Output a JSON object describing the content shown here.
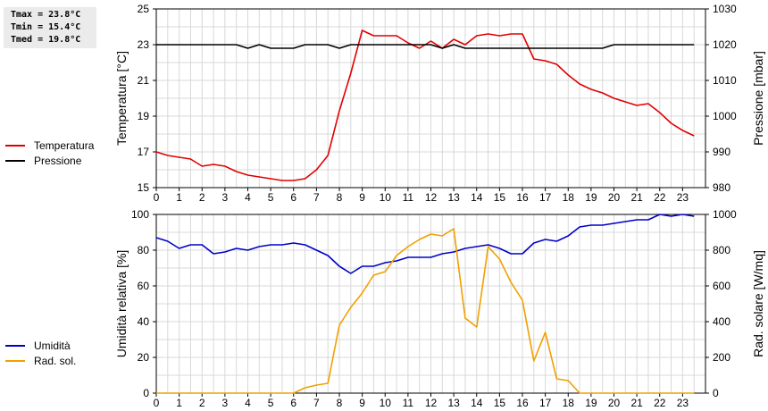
{
  "stats": {
    "tmax": "Tmax = 23.8°C",
    "tmin": "Tmin = 15.4°C",
    "tmed": "Tmed = 19.8°C"
  },
  "legend_top": [
    {
      "label": "Temperatura",
      "color": "#e00000"
    },
    {
      "label": "Pressione",
      "color": "#000000"
    }
  ],
  "legend_bottom": [
    {
      "label": "Umidità",
      "color": "#0000c8"
    },
    {
      "label": "Rad. sol.",
      "color": "#f0a000"
    }
  ],
  "chart_data": [
    {
      "type": "line",
      "x_ticks": [
        0,
        1,
        2,
        3,
        4,
        5,
        6,
        7,
        8,
        9,
        10,
        11,
        12,
        13,
        14,
        15,
        16,
        17,
        18,
        19,
        20,
        21,
        22,
        23
      ],
      "xlim": [
        0,
        24
      ],
      "grid": true,
      "left_axis": {
        "label": "Temperatura [°C]",
        "ylim": [
          15,
          25
        ],
        "ticks": [
          15,
          17,
          19,
          21,
          23,
          25
        ]
      },
      "right_axis": {
        "label": "Pressione [mbar]",
        "ylim": [
          980,
          1030
        ],
        "ticks": [
          980,
          990,
          1000,
          1010,
          1020,
          1030
        ]
      },
      "series": [
        {
          "name": "Temperatura",
          "axis": "left",
          "color": "#e00000",
          "x": [
            0,
            0.5,
            1,
            1.5,
            2,
            2.5,
            3,
            3.5,
            4,
            4.5,
            5,
            5.5,
            6,
            6.5,
            7,
            7.5,
            8,
            8.5,
            9,
            9.5,
            10,
            10.5,
            11,
            11.5,
            12,
            12.5,
            13,
            13.5,
            14,
            14.5,
            15,
            15.5,
            16,
            16.5,
            17,
            17.5,
            18,
            18.5,
            19,
            19.5,
            20,
            20.5,
            21,
            21.5,
            22,
            22.5,
            23,
            23.5
          ],
          "y": [
            17.0,
            16.8,
            16.7,
            16.6,
            16.2,
            16.3,
            16.2,
            15.9,
            15.7,
            15.6,
            15.5,
            15.4,
            15.4,
            15.5,
            16.0,
            16.8,
            19.3,
            21.4,
            23.8,
            23.5,
            23.5,
            23.5,
            23.1,
            22.8,
            23.2,
            22.8,
            23.3,
            23.0,
            23.5,
            23.6,
            23.5,
            23.6,
            23.6,
            22.2,
            22.1,
            21.9,
            21.3,
            20.8,
            20.5,
            20.3,
            20.0,
            19.8,
            19.6,
            19.7,
            19.2,
            18.6,
            18.2,
            17.9
          ]
        },
        {
          "name": "Pressione",
          "axis": "right",
          "color": "#000000",
          "x": [
            0,
            0.5,
            1,
            1.5,
            2,
            2.5,
            3,
            3.5,
            4,
            4.5,
            5,
            5.5,
            6,
            6.5,
            7,
            7.5,
            8,
            8.5,
            9,
            9.5,
            10,
            10.5,
            11,
            11.5,
            12,
            12.5,
            13,
            13.5,
            14,
            14.5,
            15,
            15.5,
            16,
            16.5,
            17,
            17.5,
            18,
            18.5,
            19,
            19.5,
            20,
            20.5,
            21,
            21.5,
            22,
            22.5,
            23,
            23.5
          ],
          "y": [
            1020,
            1020,
            1020,
            1020,
            1020,
            1020,
            1020,
            1020,
            1019,
            1020,
            1019,
            1019,
            1019,
            1020,
            1020,
            1020,
            1019,
            1020,
            1020,
            1020,
            1020,
            1020,
            1020,
            1020,
            1020,
            1019,
            1020,
            1019,
            1019,
            1019,
            1019,
            1019,
            1019,
            1019,
            1019,
            1019,
            1019,
            1019,
            1019,
            1019,
            1020,
            1020,
            1020,
            1020,
            1020,
            1020,
            1020,
            1020
          ]
        }
      ]
    },
    {
      "type": "line",
      "x_ticks": [
        0,
        1,
        2,
        3,
        4,
        5,
        6,
        7,
        8,
        9,
        10,
        11,
        12,
        13,
        14,
        15,
        16,
        17,
        18,
        19,
        20,
        21,
        22,
        23
      ],
      "xlim": [
        0,
        24
      ],
      "grid": true,
      "left_axis": {
        "label": "Umidità relativa [%]",
        "ylim": [
          0,
          100
        ],
        "ticks": [
          0,
          20,
          40,
          60,
          80,
          100
        ]
      },
      "right_axis": {
        "label": "Rad. solare [W/mq]",
        "ylim": [
          0,
          1000
        ],
        "ticks": [
          0,
          200,
          400,
          600,
          800,
          1000
        ]
      },
      "series": [
        {
          "name": "Umidità",
          "axis": "left",
          "color": "#0000c8",
          "x": [
            0,
            0.5,
            1,
            1.5,
            2,
            2.5,
            3,
            3.5,
            4,
            4.5,
            5,
            5.5,
            6,
            6.5,
            7,
            7.5,
            8,
            8.5,
            9,
            9.5,
            10,
            10.5,
            11,
            11.5,
            12,
            12.5,
            13,
            13.5,
            14,
            14.5,
            15,
            15.5,
            16,
            16.5,
            17,
            17.5,
            18,
            18.5,
            19,
            19.5,
            20,
            20.5,
            21,
            21.5,
            22,
            22.5,
            23,
            23.5
          ],
          "y": [
            87,
            85,
            81,
            83,
            83,
            78,
            79,
            81,
            80,
            82,
            83,
            83,
            84,
            83,
            80,
            77,
            71,
            67,
            71,
            71,
            73,
            74,
            76,
            76,
            76,
            78,
            79,
            81,
            82,
            83,
            81,
            78,
            78,
            84,
            86,
            85,
            88,
            93,
            94,
            94,
            95,
            96,
            97,
            97,
            100,
            99,
            100,
            99
          ]
        },
        {
          "name": "Rad. sol.",
          "axis": "right",
          "color": "#f0a000",
          "x": [
            0,
            0.5,
            1,
            1.5,
            2,
            2.5,
            3,
            3.5,
            4,
            4.5,
            5,
            5.5,
            6,
            6.5,
            7,
            7.5,
            8,
            8.5,
            9,
            9.5,
            10,
            10.5,
            11,
            11.5,
            12,
            12.5,
            13,
            13.5,
            14,
            14.5,
            15,
            15.5,
            16,
            16.5,
            17,
            17.5,
            18,
            18.5,
            19,
            19.5,
            20,
            20.5,
            21,
            21.5,
            22,
            22.5,
            23,
            23.5
          ],
          "y": [
            0,
            0,
            0,
            0,
            0,
            0,
            0,
            0,
            0,
            0,
            0,
            0,
            0,
            30,
            45,
            55,
            380,
            480,
            560,
            660,
            680,
            770,
            820,
            860,
            890,
            880,
            920,
            420,
            370,
            820,
            750,
            620,
            520,
            180,
            340,
            80,
            70,
            0,
            0,
            0,
            0,
            0,
            0,
            0,
            0,
            0,
            0,
            0
          ]
        }
      ]
    }
  ]
}
